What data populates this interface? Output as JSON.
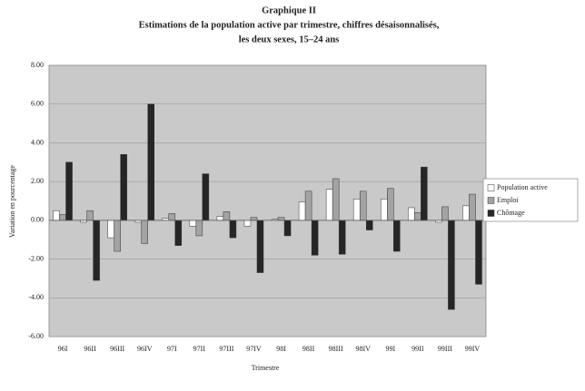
{
  "chart_data": {
    "type": "bar",
    "title": "Graphique II",
    "subtitle": [
      "Estimations de la population active par trimestre, chiffres désaisonnalisés,",
      "les deux sexes, 15–24 ans"
    ],
    "x_label": "Trimestre",
    "y_label": "Variation en pourcentage",
    "categories": [
      "96I",
      "96II",
      "96III",
      "96IV",
      "97I",
      "97II",
      "97III",
      "97IV",
      "98I",
      "98II",
      "98III",
      "98IV",
      "99I",
      "99II",
      "99III",
      "99IV"
    ],
    "series": [
      {
        "name": "Population active",
        "color": "#ffffff",
        "values": [
          0.5,
          -0.1,
          -0.9,
          -0.1,
          0.1,
          -0.3,
          0.2,
          -0.3,
          0.05,
          0.95,
          1.6,
          1.1,
          1.1,
          0.65,
          -0.1,
          0.75
        ]
      },
      {
        "name": "Emploi",
        "color": "#a3a3a3",
        "values": [
          0.3,
          0.5,
          -1.6,
          -1.2,
          0.35,
          -0.8,
          0.45,
          0.15,
          0.15,
          1.5,
          2.15,
          1.5,
          1.65,
          0.4,
          0.7,
          1.35
        ]
      },
      {
        "name": "Chômage",
        "color": "#262626",
        "values": [
          3.0,
          -3.1,
          3.4,
          6.0,
          -1.3,
          2.4,
          -0.9,
          -2.7,
          -0.8,
          -1.8,
          -1.75,
          -0.5,
          -1.6,
          2.75,
          -4.6,
          -3.3
        ]
      }
    ],
    "ylim": [
      -6,
      8
    ],
    "yticks": [
      {
        "value": -6,
        "label": "-6.00"
      },
      {
        "value": -4,
        "label": "-4.00"
      },
      {
        "value": -2,
        "label": "-2.00"
      },
      {
        "value": 0,
        "label": "0.00"
      },
      {
        "value": 2,
        "label": "2.00"
      },
      {
        "value": 4,
        "label": "4.00"
      },
      {
        "value": 6,
        "label": "6.00"
      },
      {
        "value": 8,
        "label": "8.00"
      }
    ],
    "grid": true,
    "legend": "right"
  }
}
